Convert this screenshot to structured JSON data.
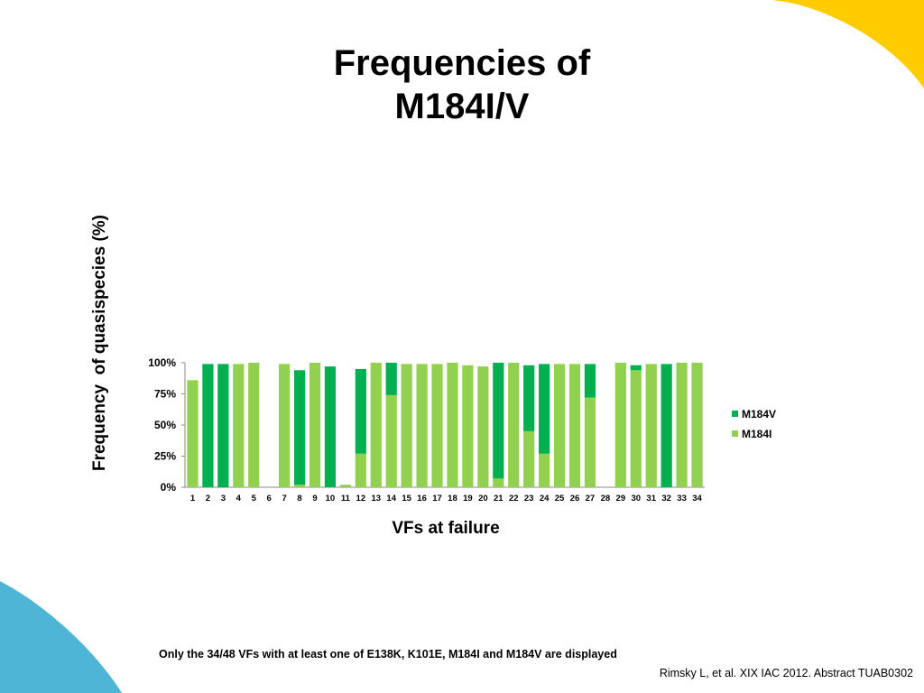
{
  "slide": {
    "title_line1": "Frequencies of",
    "title_line2": "M184I/V",
    "footnote": "Only the 34/48 VFs with at least one of E138K, K101E, M184I and M184V are displayed",
    "citation": "Rimsky L, et al. XIX IAC 2012. Abstract TUAB0302"
  },
  "colors": {
    "deco_yellow": "#FFCC00",
    "deco_blue": "#4FB5D6"
  },
  "chart_data": {
    "type": "bar",
    "stacked": true,
    "title": "",
    "xlabel": "VFs at failure",
    "ylabel": "Frequency  of quasispecies (%)",
    "ylim": [
      0,
      100
    ],
    "y_ticks": [
      "0%",
      "25%",
      "50%",
      "75%",
      "100%"
    ],
    "grid": false,
    "legend_position": "right",
    "categories": [
      "1",
      "2",
      "3",
      "4",
      "5",
      "6",
      "7",
      "8",
      "9",
      "10",
      "11",
      "12",
      "13",
      "14",
      "15",
      "16",
      "17",
      "18",
      "19",
      "20",
      "21",
      "22",
      "23",
      "24",
      "25",
      "26",
      "27",
      "28",
      "29",
      "30",
      "31",
      "32",
      "33",
      "34"
    ],
    "series": [
      {
        "name": "M184I",
        "color": "#92D050",
        "values": [
          86,
          0,
          0,
          99,
          100,
          0,
          99,
          2,
          100,
          0,
          2,
          27,
          100,
          74,
          99,
          99,
          99,
          100,
          98,
          97,
          7,
          100,
          45,
          27,
          99,
          99,
          72,
          0,
          100,
          94,
          99,
          0,
          100,
          100
        ]
      },
      {
        "name": "M184V",
        "color": "#00B050",
        "values": [
          0,
          99,
          99,
          0,
          0,
          0,
          0,
          92,
          0,
          97,
          0,
          68,
          0,
          26,
          0,
          0,
          0,
          0,
          0,
          0,
          93,
          0,
          53,
          72,
          0,
          0,
          27,
          0,
          0,
          4,
          0,
          99,
          0,
          0
        ]
      }
    ]
  }
}
